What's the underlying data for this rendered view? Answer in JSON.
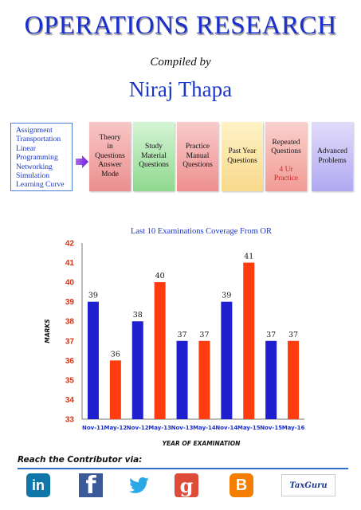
{
  "header": {
    "title": "OPERATIONS RESEARCH",
    "compiled_label": "Compiled by",
    "author": "Niraj Thapa"
  },
  "topics": [
    "Assignment",
    "Transportation",
    "Linear",
    "Programming",
    "Networking",
    "Simulation",
    "Learning Curve"
  ],
  "boxes": [
    {
      "label": "Theory\nin\nQuestions\nAnswer\nMode",
      "color": "#ec8e8e"
    },
    {
      "label": "Study\nMaterial\nQuestions",
      "color": "#8fd98f"
    },
    {
      "label": "Practice\nManual\nQuestions",
      "color": "#ee8f8f"
    },
    {
      "label": "Past Year\nQuestions",
      "color": "#f8d98a"
    },
    {
      "label_top": "Repeated\nQuestions",
      "label_bottom": "4 Ur\nPractice",
      "color": "#f19b95"
    },
    {
      "label": "Advanced\nProblems",
      "color": "#b0a8f1"
    }
  ],
  "chart_data": {
    "type": "bar",
    "title": "Last 10 Examinations Coverage From OR",
    "xlabel": "YEAR OF EXAMINATION",
    "ylabel": "MARKS",
    "categories": [
      "Nov-11",
      "May-12",
      "Nov-12",
      "May-13",
      "Nov-13",
      "May-14",
      "Nov-14",
      "May-15",
      "Nov-15",
      "May-16"
    ],
    "values": [
      39,
      36,
      38,
      40,
      37,
      37,
      39,
      41,
      37,
      37
    ],
    "bar_colors": [
      "#1f1fd0",
      "#ff3c0f",
      "#1f1fd0",
      "#ff3c0f",
      "#1f1fd0",
      "#ff3c0f",
      "#1f1fd0",
      "#ff3c0f",
      "#1f1fd0",
      "#ff3c0f"
    ],
    "ylim": [
      33,
      42
    ],
    "yticks": [
      33,
      34,
      35,
      36,
      37,
      38,
      39,
      40,
      41,
      42
    ],
    "grid": false,
    "data_labels": true
  },
  "footer": {
    "reach_label": "Reach the Contributor via:",
    "icons": [
      {
        "name": "linkedin-icon",
        "glyph": "in",
        "color": "#0e76a8"
      },
      {
        "name": "facebook-icon",
        "glyph": "f",
        "color": "#3b5998"
      },
      {
        "name": "twitter-icon",
        "glyph": "",
        "color": "#2ba7e6"
      },
      {
        "name": "google-plus-icon",
        "glyph": "g",
        "color": "#dd4b39"
      },
      {
        "name": "blogger-icon",
        "glyph": "B",
        "color": "#f57d00"
      },
      {
        "name": "taxguru-logo",
        "glyph": "TaxGuru",
        "color": "#1b3a8c"
      }
    ]
  }
}
